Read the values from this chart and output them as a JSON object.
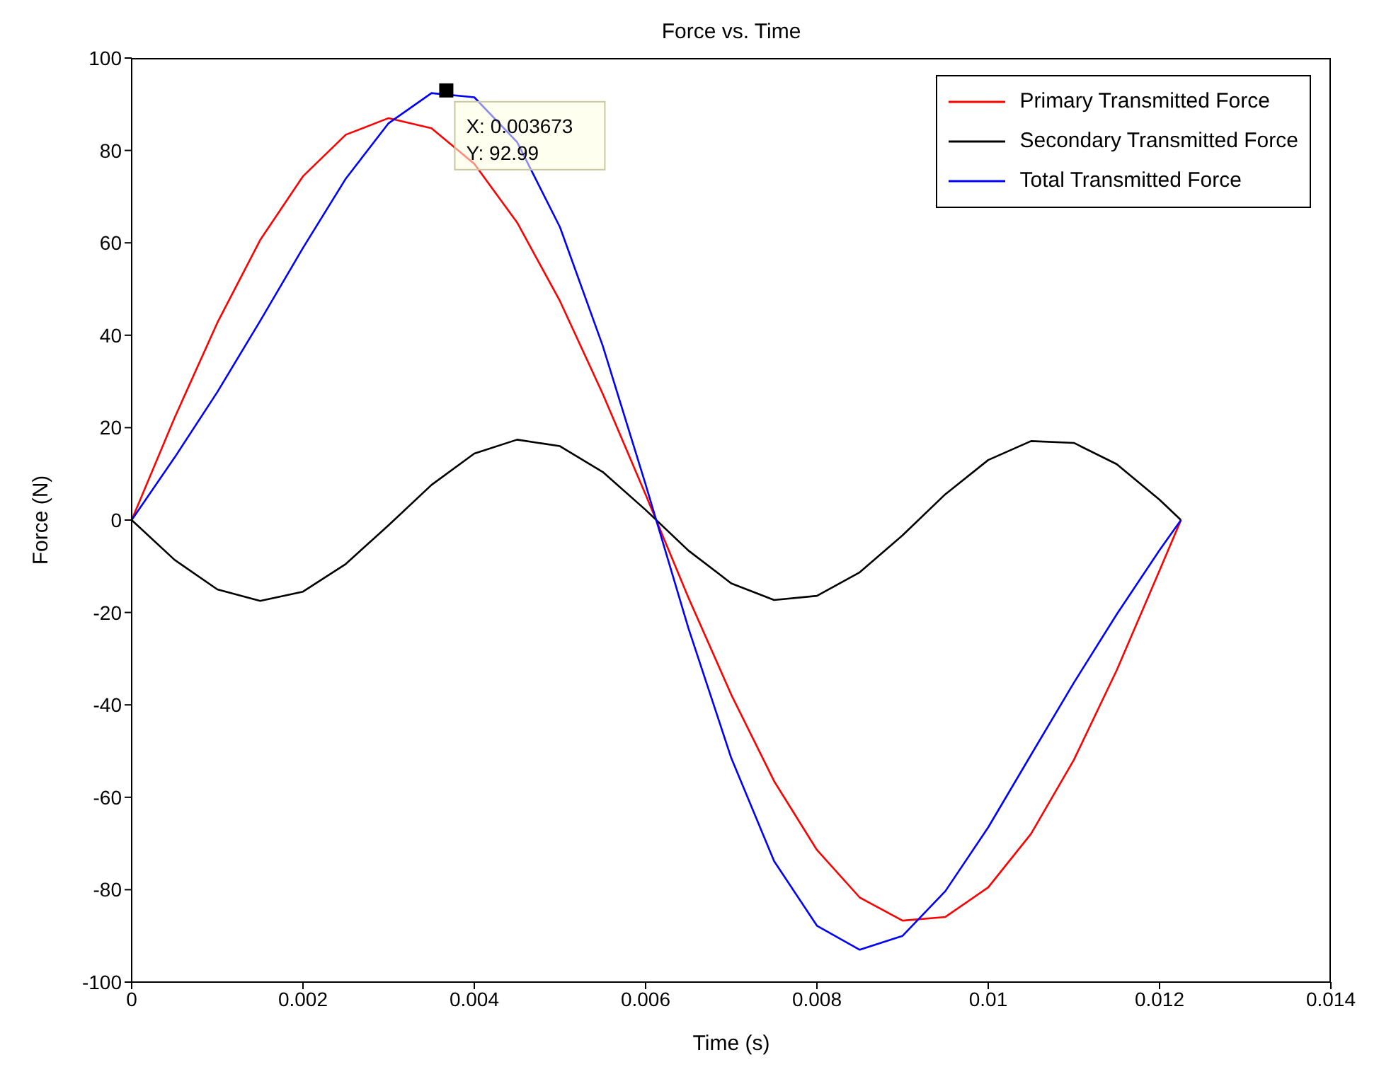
{
  "chart_data": {
    "type": "line",
    "title": "Force vs. Time",
    "xlabel": "Time (s)",
    "ylabel": "Force (N)",
    "x": [
      0,
      0.0005,
      0.001,
      0.0015,
      0.002,
      0.0025,
      0.003,
      0.0035,
      0.004,
      0.0045,
      0.005,
      0.0055,
      0.006,
      0.0065,
      0.007,
      0.0075,
      0.008,
      0.0085,
      0.009,
      0.0095,
      0.01,
      0.0105,
      0.011,
      0.0115,
      0.012,
      0.01225
    ],
    "series": [
      {
        "name": "Primary Transmitted Force",
        "color": "#ff0000",
        "values": [
          0,
          22.1,
          42.7,
          60.6,
          74.4,
          83.4,
          87.0,
          84.8,
          77.1,
          64.4,
          47.4,
          27.3,
          5.5,
          -16.8,
          -37.8,
          -56.5,
          -71.4,
          -81.7,
          -86.7,
          -85.9,
          -79.5,
          -67.9,
          -51.9,
          -32.5,
          -10.9,
          0
        ]
      },
      {
        "name": "Secondary Transmitted Force",
        "color": "#000000",
        "values": [
          0,
          -8.6,
          -15.0,
          -17.5,
          -15.5,
          -9.5,
          -1.1,
          7.6,
          14.4,
          17.4,
          16.0,
          10.4,
          2.2,
          -6.6,
          -13.7,
          -17.3,
          -16.4,
          -11.3,
          -3.3,
          5.6,
          13.0,
          17.1,
          16.7,
          12.1,
          4.4,
          0
        ]
      },
      {
        "name": "Total Transmitted Force",
        "color": "#0000ff",
        "values": [
          0,
          13.5,
          27.7,
          43.1,
          58.9,
          73.9,
          85.9,
          92.4,
          91.5,
          81.8,
          63.4,
          37.7,
          7.7,
          -23.4,
          -51.5,
          -73.8,
          -87.8,
          -93.0,
          -90.0,
          -80.3,
          -66.5,
          -50.8,
          -35.2,
          -20.4,
          -6.5,
          0
        ]
      }
    ],
    "annotations": [
      {
        "text": "X: 0.003673\nY: 92.99",
        "x": 0.003673,
        "y": 92.99
      }
    ],
    "xlim": [
      0,
      0.014
    ],
    "xticks": [
      0,
      0.002,
      0.004,
      0.006,
      0.008,
      0.01,
      0.012,
      0.014
    ],
    "ylim": [
      -100,
      100
    ],
    "yticks": [
      -100,
      -80,
      -60,
      -40,
      -20,
      0,
      20,
      40,
      60,
      80,
      100
    ],
    "legend": "top right",
    "marker": "none",
    "line_style": "solid"
  }
}
